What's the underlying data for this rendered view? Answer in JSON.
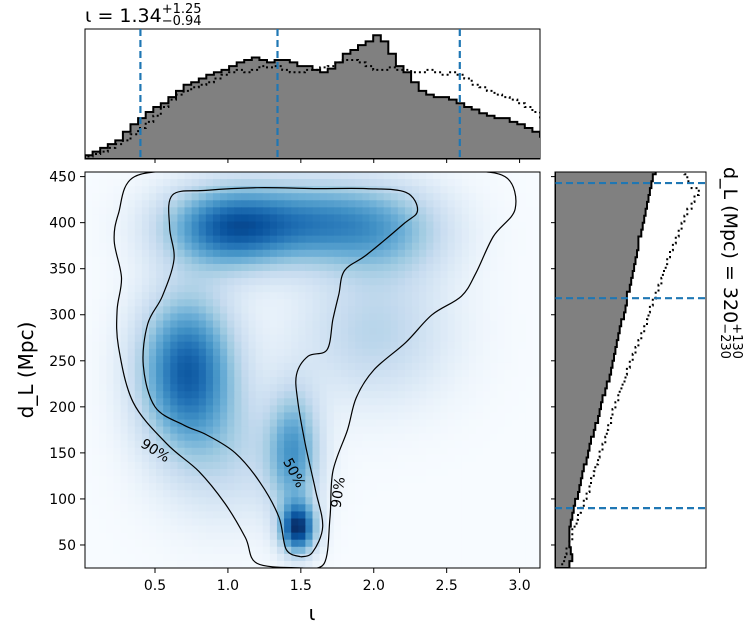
{
  "chart_data": [
    {
      "type": "heatmap",
      "panel": "joint",
      "xlabel": "ι",
      "ylabel": "d_L (Mpc)",
      "xlim": [
        0.02,
        3.14
      ],
      "ylim": [
        25,
        455
      ],
      "xticks": [
        "0.5",
        "1.0",
        "1.5",
        "2.0",
        "2.5",
        "3.0"
      ],
      "xtick_values": [
        0.5,
        1.0,
        1.5,
        2.0,
        2.5,
        3.0
      ],
      "yticks": [
        "50",
        "100",
        "150",
        "200",
        "250",
        "300",
        "350",
        "400",
        "450"
      ],
      "ytick_values": [
        50,
        100,
        150,
        200,
        250,
        300,
        350,
        400,
        450
      ],
      "colormap": "Blues",
      "density_peaks": [
        {
          "x": 1.48,
          "y": 68,
          "weight": 1.0,
          "sx": 0.08,
          "sy": 18
        },
        {
          "x": 0.72,
          "y": 240,
          "weight": 0.85,
          "sx": 0.22,
          "sy": 55
        },
        {
          "x": 1.0,
          "y": 395,
          "weight": 0.8,
          "sx": 0.3,
          "sy": 30
        },
        {
          "x": 1.6,
          "y": 400,
          "weight": 0.55,
          "sx": 0.35,
          "sy": 30
        },
        {
          "x": 2.1,
          "y": 390,
          "weight": 0.35,
          "sx": 0.3,
          "sy": 35
        },
        {
          "x": 1.45,
          "y": 150,
          "weight": 0.55,
          "sx": 0.12,
          "sy": 45
        },
        {
          "x": 2.0,
          "y": 280,
          "weight": 0.25,
          "sx": 0.35,
          "sy": 50
        },
        {
          "x": 1.0,
          "y": 150,
          "weight": 0.2,
          "sx": 0.3,
          "sy": 50
        }
      ],
      "contours": [
        {
          "label": "50%",
          "points": [
            [
              1.5,
              37
            ],
            [
              1.58,
              42
            ],
            [
              1.65,
              70
            ],
            [
              1.6,
              110
            ],
            [
              1.53,
              160
            ],
            [
              1.48,
              205
            ],
            [
              1.47,
              235
            ],
            [
              1.55,
              255
            ],
            [
              1.68,
              262
            ],
            [
              1.72,
              295
            ],
            [
              1.76,
              322
            ],
            [
              1.8,
              348
            ],
            [
              1.95,
              365
            ],
            [
              2.2,
              398
            ],
            [
              2.3,
              413
            ],
            [
              2.22,
              433
            ],
            [
              1.95,
              437
            ],
            [
              1.6,
              437
            ],
            [
              1.2,
              438
            ],
            [
              0.85,
              435
            ],
            [
              0.62,
              430
            ],
            [
              0.6,
              395
            ],
            [
              0.63,
              360
            ],
            [
              0.55,
              320
            ],
            [
              0.45,
              290
            ],
            [
              0.42,
              245
            ],
            [
              0.5,
              200
            ],
            [
              0.7,
              180
            ],
            [
              0.85,
              170
            ],
            [
              1.05,
              150
            ],
            [
              1.22,
              118
            ],
            [
              1.35,
              80
            ],
            [
              1.4,
              45
            ],
            [
              1.5,
              37
            ]
          ]
        },
        {
          "label": "90%",
          "points": [
            [
              1.5,
              25
            ],
            [
              1.2,
              30
            ],
            [
              1.12,
              58
            ],
            [
              0.98,
              95
            ],
            [
              0.8,
              130
            ],
            [
              0.58,
              160
            ],
            [
              0.35,
              205
            ],
            [
              0.25,
              265
            ],
            [
              0.24,
              305
            ],
            [
              0.27,
              340
            ],
            [
              0.22,
              380
            ],
            [
              0.25,
              410
            ],
            [
              0.36,
              450
            ],
            [
              0.8,
              456
            ],
            [
              1.35,
              456
            ],
            [
              2.0,
              456
            ],
            [
              2.55,
              456
            ],
            [
              2.9,
              450
            ],
            [
              2.97,
              415
            ],
            [
              2.82,
              385
            ],
            [
              2.7,
              345
            ],
            [
              2.6,
              320
            ],
            [
              2.4,
              300
            ],
            [
              2.22,
              270
            ],
            [
              2.0,
              240
            ],
            [
              1.88,
              210
            ],
            [
              1.82,
              175
            ],
            [
              1.72,
              130
            ],
            [
              1.7,
              80
            ],
            [
              1.66,
              30
            ],
            [
              1.5,
              25
            ]
          ]
        }
      ],
      "contour_labels": [
        {
          "text": "90%",
          "x": 0.5,
          "y": 152,
          "angle": 32
        },
        {
          "text": "50%",
          "x": 1.45,
          "y": 128,
          "angle": 62
        },
        {
          "text": "90%",
          "x": 1.76,
          "y": 107,
          "angle": -82
        }
      ]
    },
    {
      "type": "histogram",
      "panel": "marginal-top",
      "title": "ι = 1.34",
      "title_sup": "+1.25",
      "title_sub": "−0.94",
      "xlim": [
        0.02,
        3.14
      ],
      "bin_start": 0.02,
      "bin_width": 0.052,
      "filled_values": [
        0.03,
        0.06,
        0.09,
        0.12,
        0.15,
        0.22,
        0.28,
        0.33,
        0.38,
        0.42,
        0.45,
        0.5,
        0.55,
        0.6,
        0.62,
        0.65,
        0.68,
        0.7,
        0.72,
        0.75,
        0.78,
        0.8,
        0.82,
        0.8,
        0.78,
        0.8,
        0.8,
        0.78,
        0.75,
        0.75,
        0.72,
        0.7,
        0.73,
        0.78,
        0.85,
        0.88,
        0.92,
        0.95,
        1.0,
        0.95,
        0.85,
        0.75,
        0.7,
        0.62,
        0.55,
        0.52,
        0.5,
        0.5,
        0.48,
        0.45,
        0.42,
        0.4,
        0.37,
        0.35,
        0.33,
        0.33,
        0.3,
        0.28,
        0.25,
        0.22,
        0.18,
        0.15,
        0.12,
        0.1,
        0.06,
        0.03
      ],
      "dotted_values": [
        0.02,
        0.04,
        0.06,
        0.09,
        0.12,
        0.15,
        0.2,
        0.25,
        0.3,
        0.35,
        0.42,
        0.48,
        0.52,
        0.55,
        0.58,
        0.6,
        0.62,
        0.65,
        0.68,
        0.7,
        0.72,
        0.7,
        0.72,
        0.75,
        0.74,
        0.75,
        0.72,
        0.7,
        0.7,
        0.72,
        0.72,
        0.74,
        0.75,
        0.78,
        0.8,
        0.8,
        0.78,
        0.75,
        0.72,
        0.72,
        0.74,
        0.72,
        0.72,
        0.7,
        0.7,
        0.72,
        0.7,
        0.68,
        0.7,
        0.68,
        0.65,
        0.6,
        0.58,
        0.55,
        0.52,
        0.5,
        0.48,
        0.45,
        0.42,
        0.38,
        0.32,
        0.25,
        0.2,
        0.15,
        0.1,
        0.05
      ],
      "quantile_lines": [
        0.4,
        1.34,
        2.59
      ],
      "line_color": "#1f77b4",
      "fill_color": "#808080"
    },
    {
      "type": "histogram",
      "panel": "marginal-right",
      "title": "d_L (Mpc) = 320",
      "title_sup": "+130",
      "title_sub": "−230",
      "ylim": [
        25,
        455
      ],
      "bin_start": 25,
      "bin_width": 7.5,
      "filled_values": [
        0.1,
        0.12,
        0.11,
        0.1,
        0.1,
        0.1,
        0.11,
        0.12,
        0.13,
        0.14,
        0.16,
        0.17,
        0.18,
        0.19,
        0.2,
        0.22,
        0.23,
        0.24,
        0.25,
        0.27,
        0.28,
        0.3,
        0.31,
        0.32,
        0.33,
        0.35,
        0.36,
        0.38,
        0.39,
        0.4,
        0.41,
        0.42,
        0.43,
        0.44,
        0.45,
        0.46,
        0.48,
        0.49,
        0.5,
        0.5,
        0.52,
        0.53,
        0.54,
        0.55,
        0.56,
        0.57,
        0.58,
        0.58,
        0.6,
        0.61,
        0.62,
        0.63,
        0.64,
        0.65,
        0.66,
        0.67,
        0.68,
        0.7,
        0.7
      ],
      "dotted_values": [
        0.05,
        0.07,
        0.08,
        0.1,
        0.12,
        0.12,
        0.15,
        0.16,
        0.18,
        0.2,
        0.22,
        0.24,
        0.25,
        0.27,
        0.28,
        0.3,
        0.31,
        0.33,
        0.35,
        0.36,
        0.37,
        0.39,
        0.4,
        0.42,
        0.44,
        0.45,
        0.47,
        0.49,
        0.5,
        0.52,
        0.54,
        0.56,
        0.58,
        0.6,
        0.62,
        0.64,
        0.65,
        0.66,
        0.68,
        0.7,
        0.72,
        0.74,
        0.75,
        0.77,
        0.78,
        0.8,
        0.82,
        0.84,
        0.86,
        0.88,
        0.9,
        0.92,
        0.95,
        0.97,
        1.0,
        0.95,
        0.92,
        0.9,
        0.88
      ],
      "quantile_lines": [
        90,
        318,
        443
      ],
      "line_color": "#1f77b4",
      "fill_color": "#808080"
    }
  ]
}
